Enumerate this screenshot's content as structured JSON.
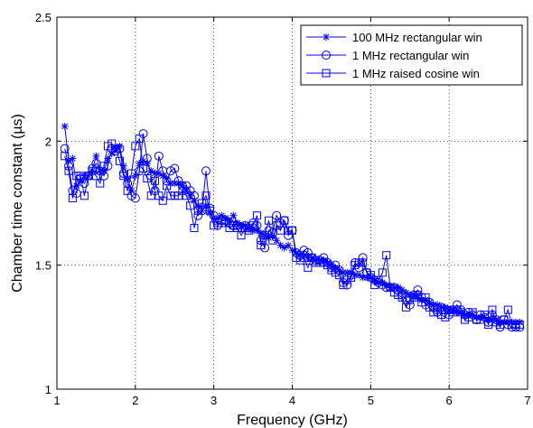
{
  "chart_data": {
    "type": "line",
    "title": "",
    "xlabel": "Frequency (GHz)",
    "ylabel": "Chamber time constant (µs)",
    "xlim": [
      1,
      7
    ],
    "ylim": [
      1,
      2.5
    ],
    "xticks": [
      "1",
      "2",
      "3",
      "4",
      "5",
      "6",
      "7"
    ],
    "yticks": [
      "1",
      "1.5",
      "2",
      "2.5"
    ],
    "grid": true,
    "legend_position": "top-right",
    "series": [
      {
        "name": "100 MHz rectangular win",
        "marker": "asterisk",
        "color": "#0000ff",
        "x": [
          1.1,
          1.15,
          1.2,
          1.25,
          1.3,
          1.35,
          1.4,
          1.45,
          1.5,
          1.55,
          1.6,
          1.65,
          1.7,
          1.75,
          1.8,
          1.85,
          1.9,
          1.95,
          2.0,
          2.05,
          2.1,
          2.15,
          2.2,
          2.25,
          2.3,
          2.35,
          2.4,
          2.45,
          2.5,
          2.55,
          2.6,
          2.65,
          2.7,
          2.75,
          2.8,
          2.85,
          2.9,
          2.95,
          3.0,
          3.05,
          3.1,
          3.15,
          3.2,
          3.25,
          3.3,
          3.35,
          3.4,
          3.45,
          3.5,
          3.55,
          3.6,
          3.65,
          3.7,
          3.75,
          3.8,
          3.85,
          3.9,
          3.95,
          4.0,
          4.05,
          4.1,
          4.15,
          4.2,
          4.25,
          4.3,
          4.35,
          4.4,
          4.45,
          4.5,
          4.55,
          4.6,
          4.65,
          4.7,
          4.75,
          4.8,
          4.85,
          4.9,
          4.95,
          5.0,
          5.05,
          5.1,
          5.15,
          5.2,
          5.25,
          5.3,
          5.35,
          5.4,
          5.45,
          5.5,
          5.55,
          5.6,
          5.65,
          5.7,
          5.75,
          5.8,
          5.85,
          5.9,
          5.95,
          6.0,
          6.05,
          6.1,
          6.15,
          6.2,
          6.25,
          6.3,
          6.35,
          6.4,
          6.45,
          6.5,
          6.55,
          6.6,
          6.65,
          6.7,
          6.75,
          6.8,
          6.85,
          6.9
        ],
        "y": [
          2.06,
          1.92,
          1.93,
          1.82,
          1.84,
          1.86,
          1.86,
          1.88,
          1.94,
          1.88,
          1.88,
          1.93,
          1.95,
          1.97,
          1.98,
          1.9,
          1.85,
          1.8,
          1.86,
          1.91,
          1.92,
          1.91,
          1.88,
          1.87,
          1.87,
          1.86,
          1.85,
          1.83,
          1.83,
          1.83,
          1.82,
          1.8,
          1.78,
          1.76,
          1.74,
          1.72,
          1.74,
          1.71,
          1.69,
          1.69,
          1.7,
          1.69,
          1.68,
          1.7,
          1.67,
          1.66,
          1.66,
          1.65,
          1.64,
          1.64,
          1.63,
          1.62,
          1.61,
          1.62,
          1.6,
          1.58,
          1.57,
          1.58,
          1.56,
          1.55,
          1.54,
          1.54,
          1.53,
          1.53,
          1.52,
          1.52,
          1.52,
          1.51,
          1.5,
          1.49,
          1.48,
          1.47,
          1.47,
          1.47,
          1.46,
          1.46,
          1.45,
          1.45,
          1.45,
          1.44,
          1.43,
          1.43,
          1.42,
          1.41,
          1.41,
          1.41,
          1.4,
          1.39,
          1.38,
          1.38,
          1.37,
          1.36,
          1.36,
          1.35,
          1.34,
          1.34,
          1.33,
          1.33,
          1.32,
          1.32,
          1.31,
          1.31,
          1.3,
          1.3,
          1.3,
          1.29,
          1.29,
          1.29,
          1.28,
          1.28,
          1.28,
          1.27,
          1.27,
          1.27,
          1.27,
          1.27,
          1.27
        ]
      },
      {
        "name": "1 MHz rectangular win",
        "marker": "circle",
        "color": "#0000ff",
        "x": [
          1.1,
          1.15,
          1.2,
          1.25,
          1.3,
          1.35,
          1.4,
          1.45,
          1.5,
          1.55,
          1.6,
          1.65,
          1.7,
          1.75,
          1.8,
          1.85,
          1.9,
          1.95,
          2.0,
          2.05,
          2.1,
          2.15,
          2.2,
          2.25,
          2.3,
          2.35,
          2.4,
          2.45,
          2.5,
          2.55,
          2.6,
          2.65,
          2.7,
          2.75,
          2.8,
          2.85,
          2.9,
          2.95,
          3.0,
          3.05,
          3.1,
          3.15,
          3.2,
          3.25,
          3.3,
          3.35,
          3.4,
          3.45,
          3.5,
          3.55,
          3.6,
          3.65,
          3.7,
          3.75,
          3.8,
          3.85,
          3.9,
          3.95,
          4.0,
          4.05,
          4.1,
          4.15,
          4.2,
          4.25,
          4.3,
          4.35,
          4.4,
          4.45,
          4.5,
          4.55,
          4.6,
          4.65,
          4.7,
          4.75,
          4.8,
          4.85,
          4.9,
          4.95,
          5.0,
          5.05,
          5.1,
          5.15,
          5.2,
          5.25,
          5.3,
          5.35,
          5.4,
          5.45,
          5.5,
          5.55,
          5.6,
          5.65,
          5.7,
          5.75,
          5.8,
          5.85,
          5.9,
          5.95,
          6.0,
          6.05,
          6.1,
          6.15,
          6.2,
          6.25,
          6.3,
          6.35,
          6.4,
          6.45,
          6.5,
          6.55,
          6.6,
          6.65,
          6.7,
          6.75,
          6.8,
          6.85,
          6.9
        ],
        "y": [
          1.97,
          1.9,
          1.8,
          1.79,
          1.85,
          1.83,
          1.86,
          1.89,
          1.91,
          1.88,
          1.86,
          1.9,
          1.97,
          1.96,
          1.97,
          1.87,
          1.83,
          1.78,
          1.77,
          1.88,
          2.03,
          1.93,
          1.86,
          1.8,
          1.94,
          1.88,
          1.84,
          1.88,
          1.89,
          1.84,
          1.82,
          1.82,
          1.8,
          1.78,
          1.7,
          1.72,
          1.88,
          1.73,
          1.7,
          1.66,
          1.68,
          1.68,
          1.67,
          1.66,
          1.66,
          1.65,
          1.66,
          1.65,
          1.67,
          1.66,
          1.6,
          1.57,
          1.64,
          1.63,
          1.7,
          1.67,
          1.68,
          1.62,
          1.64,
          1.55,
          1.54,
          1.56,
          1.55,
          1.53,
          1.52,
          1.52,
          1.53,
          1.51,
          1.49,
          1.5,
          1.48,
          1.43,
          1.42,
          1.46,
          1.51,
          1.49,
          1.53,
          1.47,
          1.45,
          1.44,
          1.43,
          1.42,
          1.41,
          1.41,
          1.41,
          1.4,
          1.38,
          1.36,
          1.34,
          1.38,
          1.4,
          1.37,
          1.34,
          1.35,
          1.33,
          1.31,
          1.33,
          1.32,
          1.3,
          1.32,
          1.34,
          1.32,
          1.3,
          1.31,
          1.3,
          1.28,
          1.3,
          1.29,
          1.27,
          1.3,
          1.28,
          1.25,
          1.28,
          1.26,
          1.25,
          1.25,
          1.25
        ]
      },
      {
        "name": "1 MHz raised cosine win",
        "marker": "square",
        "color": "#0000ff",
        "x": [
          1.1,
          1.15,
          1.2,
          1.25,
          1.3,
          1.35,
          1.4,
          1.45,
          1.5,
          1.55,
          1.6,
          1.65,
          1.7,
          1.75,
          1.8,
          1.85,
          1.9,
          1.95,
          2.0,
          2.05,
          2.1,
          2.15,
          2.2,
          2.25,
          2.3,
          2.35,
          2.4,
          2.45,
          2.5,
          2.55,
          2.6,
          2.65,
          2.7,
          2.75,
          2.8,
          2.85,
          2.9,
          2.95,
          3.0,
          3.05,
          3.1,
          3.15,
          3.2,
          3.25,
          3.3,
          3.35,
          3.4,
          3.45,
          3.5,
          3.55,
          3.6,
          3.65,
          3.7,
          3.75,
          3.8,
          3.85,
          3.9,
          3.95,
          4.0,
          4.05,
          4.1,
          4.15,
          4.2,
          4.25,
          4.3,
          4.35,
          4.4,
          4.45,
          4.5,
          4.55,
          4.6,
          4.65,
          4.7,
          4.75,
          4.8,
          4.85,
          4.9,
          4.95,
          5.0,
          5.05,
          5.1,
          5.15,
          5.2,
          5.25,
          5.3,
          5.35,
          5.4,
          5.45,
          5.5,
          5.55,
          5.6,
          5.65,
          5.7,
          5.75,
          5.8,
          5.85,
          5.9,
          5.95,
          6.0,
          6.05,
          6.1,
          6.15,
          6.2,
          6.25,
          6.3,
          6.35,
          6.4,
          6.45,
          6.5,
          6.55,
          6.6,
          6.65,
          6.7,
          6.75,
          6.8,
          6.85,
          6.9
        ],
        "y": [
          1.94,
          1.88,
          1.77,
          1.86,
          1.86,
          1.78,
          1.86,
          1.88,
          1.86,
          1.83,
          1.9,
          1.98,
          1.99,
          1.97,
          1.92,
          1.86,
          1.8,
          1.87,
          1.98,
          2.01,
          1.89,
          1.85,
          1.78,
          1.84,
          1.78,
          1.76,
          1.82,
          1.78,
          1.78,
          1.78,
          1.8,
          1.78,
          1.74,
          1.65,
          1.72,
          1.75,
          1.78,
          1.72,
          1.66,
          1.67,
          1.67,
          1.67,
          1.65,
          1.66,
          1.65,
          1.62,
          1.65,
          1.64,
          1.66,
          1.7,
          1.58,
          1.62,
          1.68,
          1.6,
          1.66,
          1.64,
          1.68,
          1.64,
          1.64,
          1.53,
          1.52,
          1.53,
          1.49,
          1.53,
          1.51,
          1.51,
          1.51,
          1.5,
          1.48,
          1.47,
          1.46,
          1.42,
          1.44,
          1.45,
          1.5,
          1.51,
          1.51,
          1.47,
          1.46,
          1.42,
          1.44,
          1.47,
          1.54,
          1.41,
          1.39,
          1.38,
          1.37,
          1.33,
          1.36,
          1.37,
          1.38,
          1.35,
          1.37,
          1.33,
          1.31,
          1.32,
          1.3,
          1.29,
          1.32,
          1.31,
          1.32,
          1.31,
          1.28,
          1.29,
          1.31,
          1.28,
          1.28,
          1.3,
          1.26,
          1.32,
          1.27,
          1.26,
          1.28,
          1.32,
          1.26,
          1.26,
          1.26
        ]
      }
    ]
  }
}
